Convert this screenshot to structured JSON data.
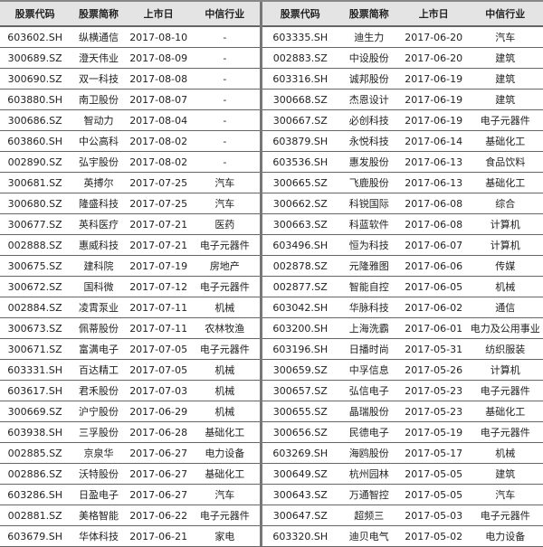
{
  "headers": [
    "股票代码",
    "股票简称",
    "上市日",
    "中信行业"
  ],
  "left_rows": [
    [
      "603602.SH",
      "纵横通信",
      "2017-08-10",
      "-"
    ],
    [
      "300689.SZ",
      "澄天伟业",
      "2017-08-09",
      "-"
    ],
    [
      "300690.SZ",
      "双一科技",
      "2017-08-08",
      "-"
    ],
    [
      "603880.SH",
      "南卫股份",
      "2017-08-07",
      "-"
    ],
    [
      "300686.SZ",
      "智动力",
      "2017-08-04",
      "-"
    ],
    [
      "603860.SH",
      "中公高科",
      "2017-08-02",
      "-"
    ],
    [
      "002890.SZ",
      "弘宇股份",
      "2017-08-02",
      "-"
    ],
    [
      "300681.SZ",
      "英搏尔",
      "2017-07-25",
      "汽车"
    ],
    [
      "300680.SZ",
      "隆盛科技",
      "2017-07-25",
      "汽车"
    ],
    [
      "300677.SZ",
      "英科医疗",
      "2017-07-21",
      "医药"
    ],
    [
      "002888.SZ",
      "惠威科技",
      "2017-07-21",
      "电子元器件"
    ],
    [
      "300675.SZ",
      "建科院",
      "2017-07-19",
      "房地产"
    ],
    [
      "300672.SZ",
      "国科微",
      "2017-07-12",
      "电子元器件"
    ],
    [
      "002884.SZ",
      "凌霄泵业",
      "2017-07-11",
      "机械"
    ],
    [
      "300673.SZ",
      "佩蒂股份",
      "2017-07-11",
      "农林牧渔"
    ],
    [
      "300671.SZ",
      "富满电子",
      "2017-07-05",
      "电子元器件"
    ],
    [
      "603331.SH",
      "百达精工",
      "2017-07-05",
      "机械"
    ],
    [
      "603617.SH",
      "君禾股份",
      "2017-07-03",
      "机械"
    ],
    [
      "300669.SZ",
      "沪宁股份",
      "2017-06-29",
      "机械"
    ],
    [
      "603938.SH",
      "三孚股份",
      "2017-06-28",
      "基础化工"
    ],
    [
      "002885.SZ",
      "京泉华",
      "2017-06-27",
      "电力设备"
    ],
    [
      "002886.SZ",
      "沃特股份",
      "2017-06-27",
      "基础化工"
    ],
    [
      "603286.SH",
      "日盈电子",
      "2017-06-27",
      "汽车"
    ],
    [
      "002881.SZ",
      "美格智能",
      "2017-06-22",
      "电子元器件"
    ],
    [
      "603679.SH",
      "华体科技",
      "2017-06-21",
      "家电"
    ]
  ],
  "right_rows": [
    [
      "603335.SH",
      "迪生力",
      "2017-06-20",
      "汽车"
    ],
    [
      "002883.SZ",
      "中设股份",
      "2017-06-20",
      "建筑"
    ],
    [
      "603316.SH",
      "诚邦股份",
      "2017-06-19",
      "建筑"
    ],
    [
      "300668.SZ",
      "杰恩设计",
      "2017-06-19",
      "建筑"
    ],
    [
      "300667.SZ",
      "必创科技",
      "2017-06-19",
      "电子元器件"
    ],
    [
      "603879.SH",
      "永悦科技",
      "2017-06-14",
      "基础化工"
    ],
    [
      "603536.SH",
      "惠发股份",
      "2017-06-13",
      "食品饮料"
    ],
    [
      "300665.SZ",
      "飞鹿股份",
      "2017-06-13",
      "基础化工"
    ],
    [
      "300662.SZ",
      "科锐国际",
      "2017-06-08",
      "综合"
    ],
    [
      "300663.SZ",
      "科蓝软件",
      "2017-06-08",
      "计算机"
    ],
    [
      "603496.SH",
      "恒为科技",
      "2017-06-07",
      "计算机"
    ],
    [
      "002878.SZ",
      "元隆雅图",
      "2017-06-06",
      "传媒"
    ],
    [
      "002877.SZ",
      "智能自控",
      "2017-06-05",
      "机械"
    ],
    [
      "603042.SH",
      "华脉科技",
      "2017-06-02",
      "通信"
    ],
    [
      "603200.SH",
      "上海洗霸",
      "2017-06-01",
      "电力及公用事业"
    ],
    [
      "603196.SH",
      "日播时尚",
      "2017-05-31",
      "纺织服装"
    ],
    [
      "300659.SZ",
      "中孚信息",
      "2017-05-26",
      "计算机"
    ],
    [
      "300657.SZ",
      "弘信电子",
      "2017-05-23",
      "电子元器件"
    ],
    [
      "300655.SZ",
      "晶瑞股份",
      "2017-05-23",
      "基础化工"
    ],
    [
      "300656.SZ",
      "民德电子",
      "2017-05-19",
      "电子元器件"
    ],
    [
      "603269.SH",
      "海鸥股份",
      "2017-05-17",
      "机械"
    ],
    [
      "300649.SZ",
      "杭州园林",
      "2017-05-05",
      "建筑"
    ],
    [
      "300643.SZ",
      "万通智控",
      "2017-05-05",
      "汽车"
    ],
    [
      "300647.SZ",
      "超频三",
      "2017-05-03",
      "电子元器件"
    ],
    [
      "603320.SH",
      "迪贝电气",
      "2017-05-02",
      "电力设备"
    ]
  ]
}
